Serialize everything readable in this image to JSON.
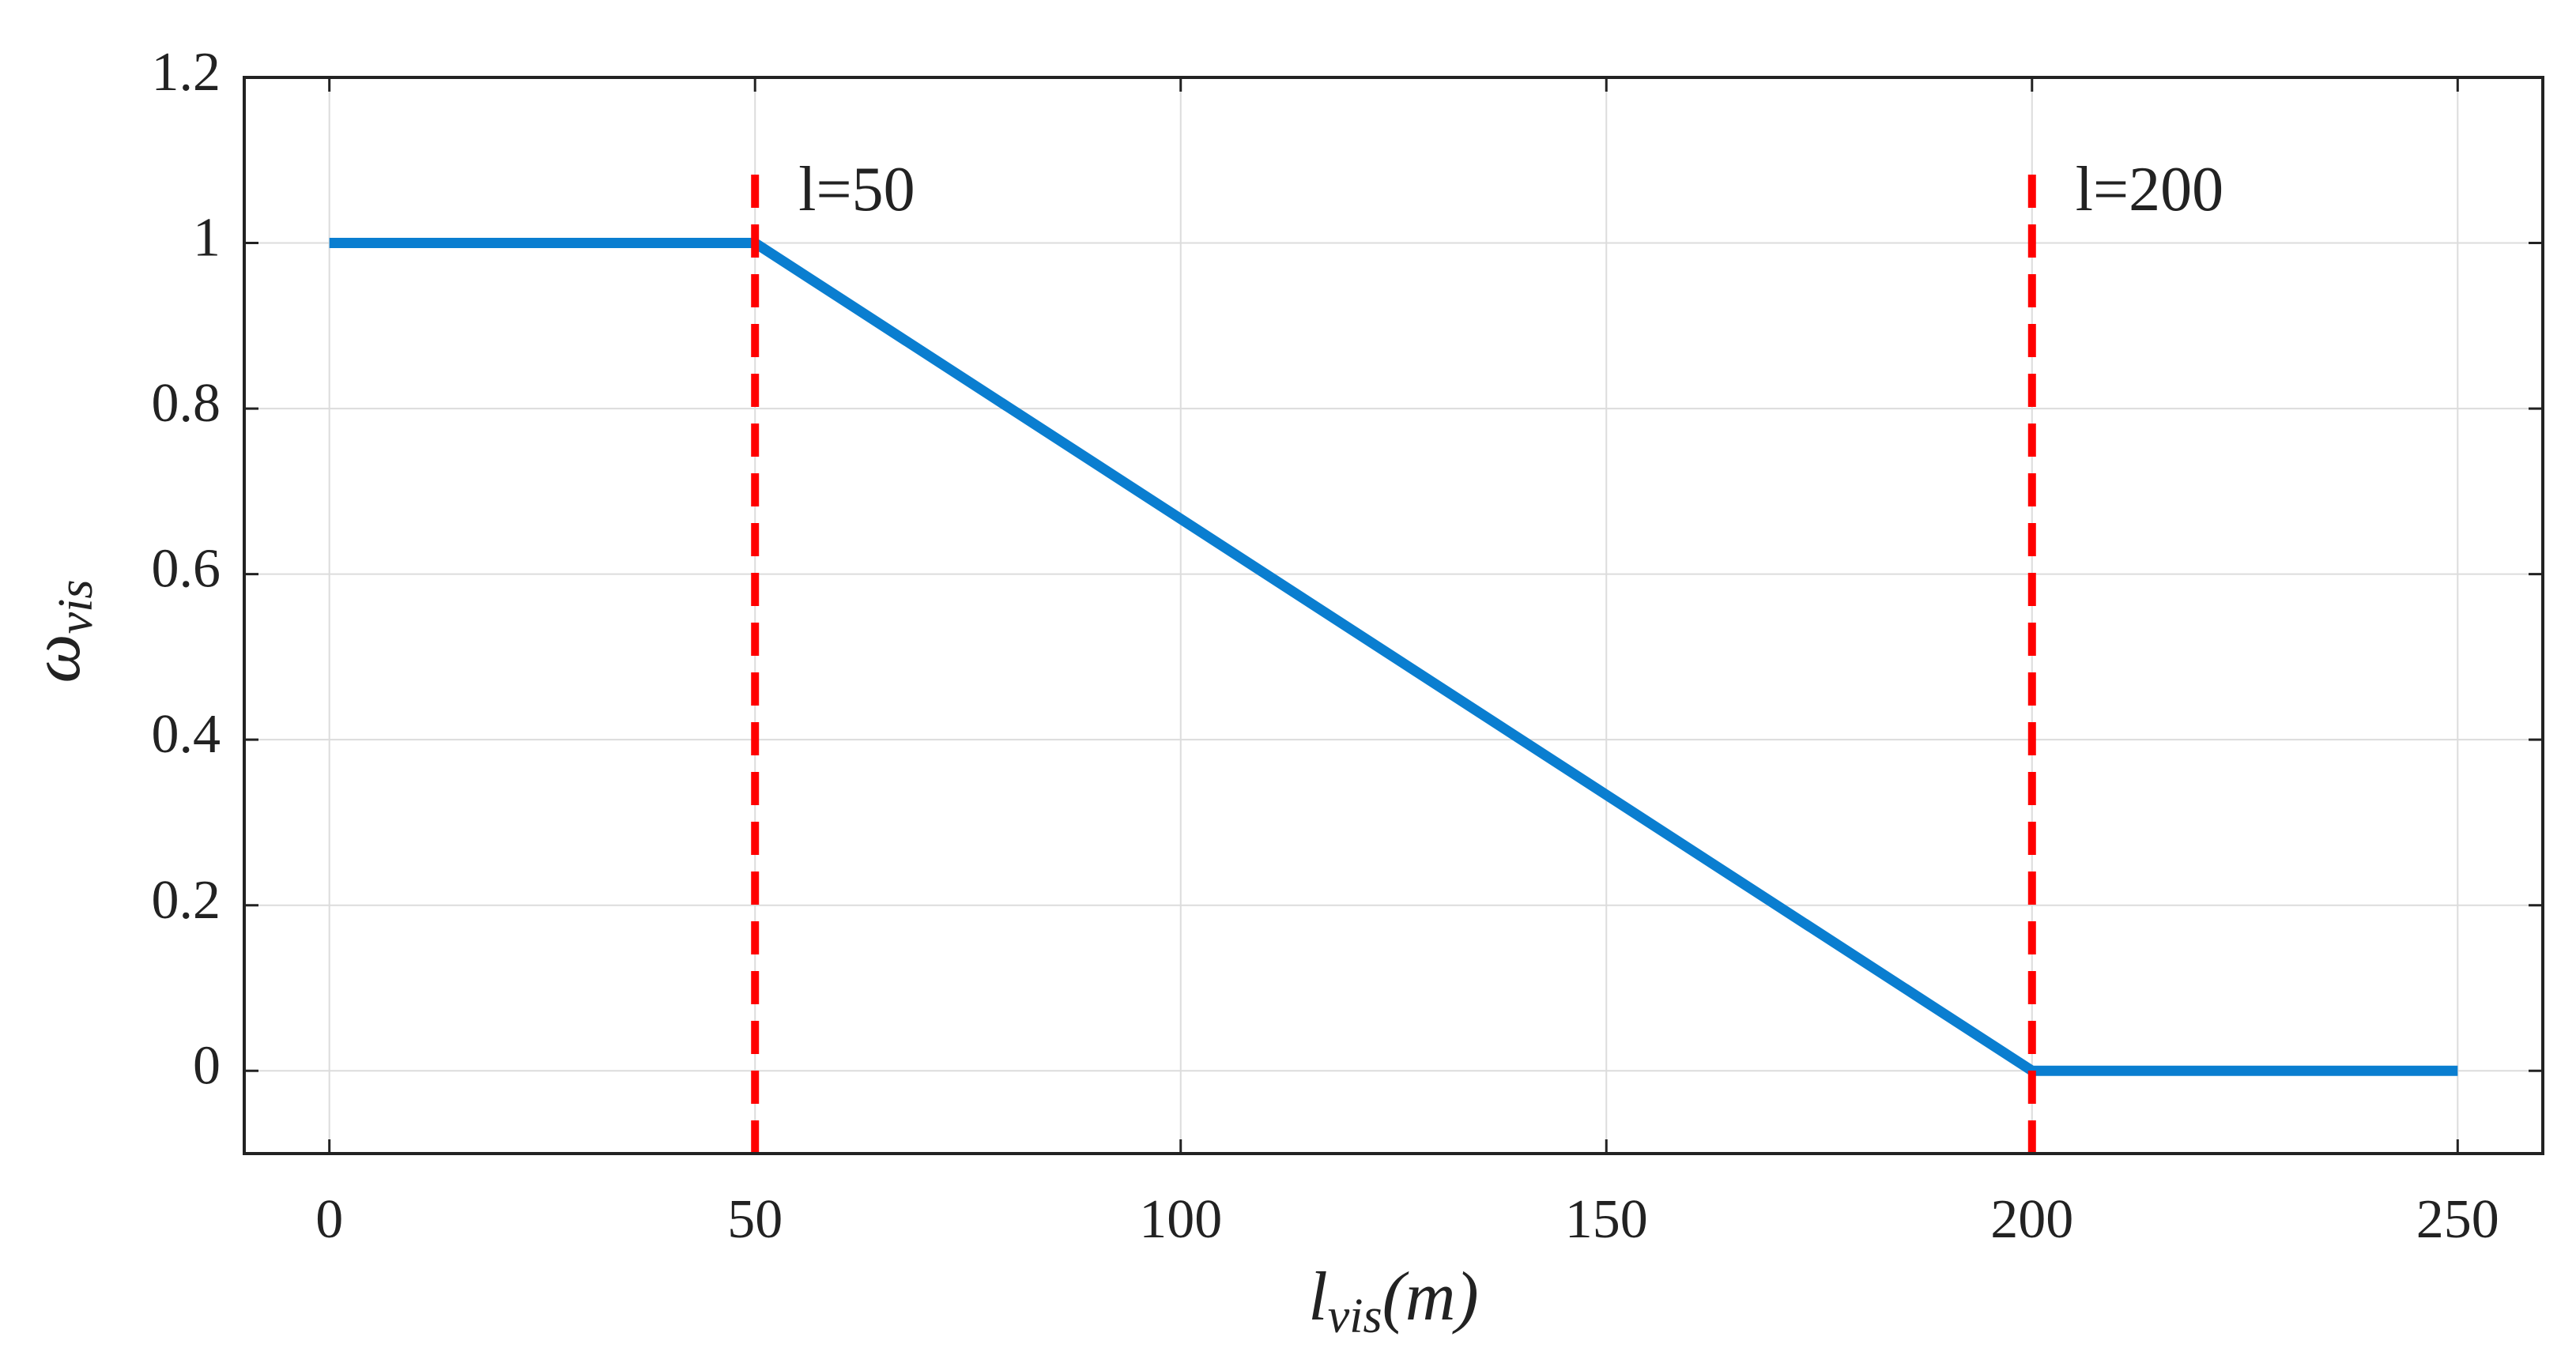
{
  "chart_data": {
    "type": "line",
    "x_label": {
      "main": "l",
      "sub": "vis",
      "rest": "(m)"
    },
    "y_label": {
      "main": "ω",
      "sub": "vis"
    },
    "x": [
      0,
      50,
      200,
      250
    ],
    "series": [
      {
        "color": "#0a7ed0",
        "values": [
          1,
          1,
          0,
          0
        ]
      }
    ],
    "xlim": [
      -10,
      260
    ],
    "ylim": [
      -0.1,
      1.2
    ],
    "xticks": [
      0,
      50,
      100,
      150,
      200,
      250
    ],
    "yticks": [
      0,
      0.2,
      0.4,
      0.6,
      0.8,
      1,
      1.2
    ],
    "grid": true,
    "reference_lines": [
      {
        "x": 50,
        "y_range": [
          -0.1,
          1.1
        ],
        "label": "l=50",
        "color": "#ff0000"
      },
      {
        "x": 200,
        "y_range": [
          -0.1,
          1.1
        ],
        "label": "l=200",
        "color": "#ff0000"
      }
    ]
  }
}
